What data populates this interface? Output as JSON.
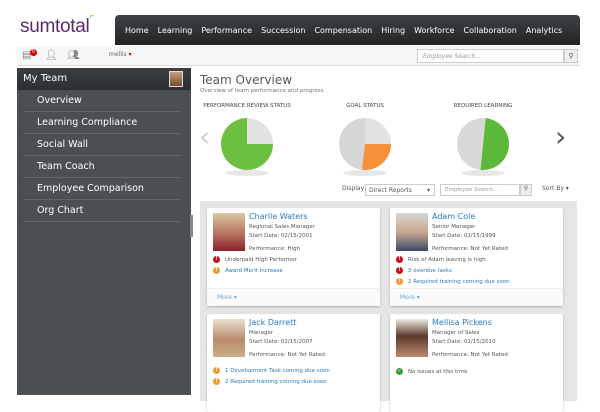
{
  "brand": {
    "logo": "sumtotal"
  },
  "nav": [
    "Home",
    "Learning",
    "Performance",
    "Succession",
    "Compensation",
    "Hiring",
    "Workforce",
    "Collaboration",
    "Analytics"
  ],
  "toolbar": {
    "badge_count": "0",
    "user": "mellis",
    "user_caret": "▾",
    "search_placeholder": "Employee Search...",
    "search_icon": "magnifier-icon"
  },
  "sidebar": {
    "title": "My Team",
    "items": [
      "Overview",
      "Learning Compliance",
      "Social Wall",
      "Team Coach",
      "Employee Comparison",
      "Org Chart"
    ]
  },
  "main": {
    "title": "Team Overview",
    "subtitle": "Overview of team performance and progress.",
    "charts": [
      {
        "title": "PERFORMANCE REVIEW STATUS",
        "slices": [
          {
            "value": 75,
            "color": "#6cc040"
          },
          {
            "value": 25,
            "color": "#e2e2e2"
          }
        ]
      },
      {
        "title": "GOAL STATUS",
        "slices": [
          {
            "value": 25,
            "color": "#e2e2e2"
          },
          {
            "value": 27,
            "color": "#f6913a"
          },
          {
            "value": 48,
            "color": "#d6d6d6"
          }
        ]
      },
      {
        "title": "REQUIRED LEARNING",
        "slices": [
          {
            "value": 50,
            "color": "#5cb83a"
          },
          {
            "value": 50,
            "color": "#d8d8d8"
          }
        ]
      }
    ],
    "prev": "‹",
    "next": "›",
    "display_label": "Display",
    "display_value": "Direct Reports",
    "display_caret": "▾",
    "search_placeholder": "Employee Search...",
    "sort_label": "Sort By ▾"
  },
  "employees": [
    {
      "name": "Charlie Waters",
      "title": "Regional Sales Manager",
      "start": "Start Date: 02/15/2001",
      "performance": "Performance:  High",
      "alerts": [
        {
          "level": "red",
          "text": "Underpaid High Performer",
          "link": false
        },
        {
          "level": "orange",
          "text": "Award Merit Increase",
          "link": true
        }
      ],
      "more": "More ▾"
    },
    {
      "name": "Adam Cole",
      "title": "Senior Manager",
      "start": "Start Date: 02/15/1999",
      "performance": "Performance:  Not Yet Rated",
      "alerts": [
        {
          "level": "red",
          "text": "Risk of Adam leaving is high",
          "link": false
        },
        {
          "level": "red",
          "text": "3 overdue tasks",
          "link": true
        },
        {
          "level": "orange",
          "text": "2 Required training coming due soon",
          "link": true
        }
      ],
      "more": "More ▾"
    },
    {
      "name": "Jack Darrett",
      "title": "Manager",
      "start": "Start Date: 02/15/2007",
      "performance": "Performance:  Not Yet Rated",
      "alerts": [
        {
          "level": "orange",
          "text": "1 Development Task coming due soon",
          "link": true
        },
        {
          "level": "orange",
          "text": "2 Required training coming due soon",
          "link": true
        }
      ]
    },
    {
      "name": "Mellisa Pickens",
      "title": "Manager of Sales",
      "start": "Start Date: 02/15/2010",
      "performance": "Performance:  Not Yet Rated",
      "alerts": [
        {
          "level": "green",
          "text": "No issues at this time",
          "link": false
        }
      ]
    }
  ]
}
